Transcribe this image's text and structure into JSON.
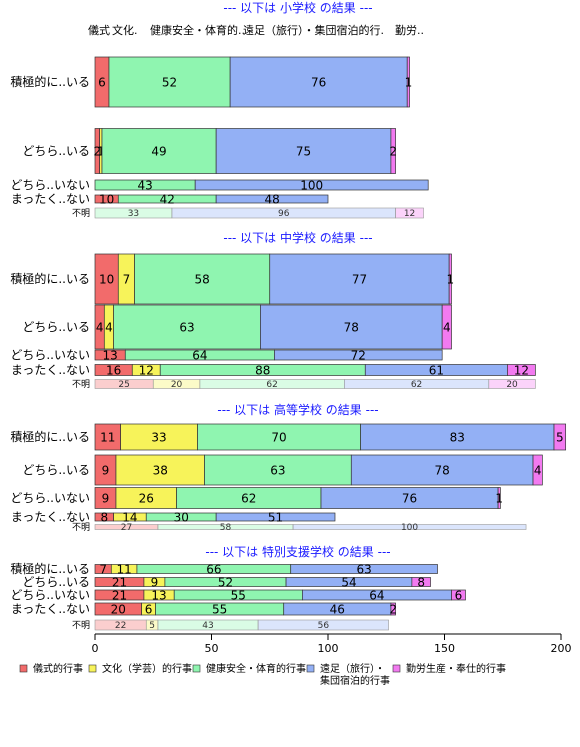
{
  "chart_data": {
    "type": "bar",
    "orientation": "horizontal",
    "stacked": true,
    "xlim": [
      0,
      200
    ],
    "x_ticks": [
      "0",
      "50",
      "100",
      "150",
      "200"
    ],
    "series": [
      {
        "name": "儀式的行事",
        "color": "#f26b6b"
      },
      {
        "name": "文化（学芸）的行事",
        "color": "#f7f35a"
      },
      {
        "name": "健康安全・体育的行事",
        "color": "#8ff5b0"
      },
      {
        "name": "遠足（旅行）・集団宿泊的行事",
        "color": "#93b0f5"
      },
      {
        "name": "勤労生産・奉仕的行事",
        "color": "#f27af0"
      }
    ],
    "top_header_labels": [
      "儀式",
      "文化.",
      "健康安全・体育的..",
      "遠足（旅行）・集団宿泊的行.",
      "勤労.."
    ],
    "panels": [
      {
        "title": "--- 以下は 小学校 の結果 ---",
        "rows": [
          {
            "label": "積極的に..いる",
            "values": [
              6,
              0,
              52,
              76,
              1
            ],
            "labels": [
              "6",
              "",
              "52",
              "76",
              "1"
            ]
          },
          {
            "label": "どちら..いる",
            "values": [
              2,
              1,
              49,
              75,
              2
            ],
            "labels": [
              "2",
              "1",
              "49",
              "75",
              "2"
            ]
          },
          {
            "label": "どちら..いない",
            "values": [
              0,
              0,
              43,
              100,
              0
            ],
            "labels": [
              "",
              "",
              "43",
              "100",
              ""
            ]
          },
          {
            "label": "まったく..ない",
            "values": [
              10,
              0,
              42,
              48,
              0
            ],
            "labels": [
              "10",
              "",
              "42",
              "48",
              ""
            ]
          },
          {
            "label": "不明",
            "small": true,
            "values": [
              0,
              0,
              33,
              96,
              12
            ],
            "labels": [
              "",
              "",
              "33",
              "96",
              "12"
            ]
          }
        ]
      },
      {
        "title": "--- 以下は 中学校 の結果 ---",
        "rows": [
          {
            "label": "積極的に..いる",
            "values": [
              10,
              7,
              58,
              77,
              1
            ],
            "labels": [
              "10",
              "7",
              "58",
              "77",
              "1"
            ]
          },
          {
            "label": "どちら..いる",
            "values": [
              4,
              4,
              63,
              78,
              4
            ],
            "labels": [
              "4",
              "4",
              "63",
              "78",
              "4"
            ]
          },
          {
            "label": "どちら..いない",
            "values": [
              13,
              0,
              64,
              72,
              0
            ],
            "labels": [
              "13",
              "",
              "64",
              "72",
              ""
            ]
          },
          {
            "label": "まったく..ない",
            "values": [
              16,
              12,
              88,
              61,
              12
            ],
            "labels": [
              "16",
              "12",
              "88",
              "61",
              "12"
            ]
          },
          {
            "label": "不明",
            "small": true,
            "values": [
              25,
              20,
              62,
              62,
              20
            ],
            "labels": [
              "25",
              "20",
              "62",
              "62",
              "20"
            ]
          }
        ]
      },
      {
        "title": "--- 以下は 高等学校 の結果 ---",
        "rows": [
          {
            "label": "積極的に..いる",
            "values": [
              11,
              33,
              70,
              83,
              5
            ],
            "labels": [
              "11",
              "33",
              "70",
              "83",
              "5"
            ]
          },
          {
            "label": "どちら..いる",
            "values": [
              9,
              38,
              63,
              78,
              4
            ],
            "labels": [
              "9",
              "38",
              "63",
              "78",
              "4"
            ]
          },
          {
            "label": "どちら..いない",
            "values": [
              9,
              26,
              62,
              76,
              1
            ],
            "labels": [
              "9",
              "26",
              "62",
              "76",
              "1"
            ]
          },
          {
            "label": "まったく..ない",
            "values": [
              8,
              14,
              30,
              51,
              0
            ],
            "labels": [
              "8",
              "14",
              "30",
              "51",
              ""
            ]
          },
          {
            "label": "不明",
            "small": true,
            "values": [
              27,
              0,
              58,
              100,
              0
            ],
            "labels": [
              "27",
              "",
              "58",
              "100",
              ""
            ]
          }
        ]
      },
      {
        "title": "--- 以下は 特別支援学校 の結果 ---",
        "rows": [
          {
            "label": "積極的に..いる",
            "values": [
              7,
              11,
              66,
              63,
              0
            ],
            "labels": [
              "7",
              "11",
              "66",
              "63",
              ""
            ]
          },
          {
            "label": "どちら..いる",
            "values": [
              21,
              9,
              52,
              54,
              8
            ],
            "labels": [
              "21",
              "9",
              "52",
              "54",
              "8"
            ]
          },
          {
            "label": "どちら..いない",
            "values": [
              21,
              13,
              55,
              64,
              6
            ],
            "labels": [
              "21",
              "13",
              "55",
              "64",
              "6"
            ]
          },
          {
            "label": "まったく..ない",
            "values": [
              20,
              6,
              55,
              46,
              2
            ],
            "labels": [
              "20",
              "6",
              "55",
              "46",
              "2"
            ]
          },
          {
            "label": "不明",
            "small": true,
            "values": [
              22,
              5,
              43,
              56,
              0
            ],
            "labels": [
              "22",
              "5",
              "43",
              "56",
              ""
            ]
          }
        ]
      }
    ]
  }
}
